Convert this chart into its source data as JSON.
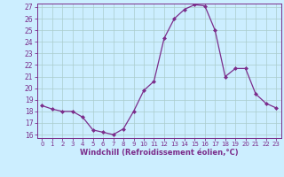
{
  "x": [
    0,
    1,
    2,
    3,
    4,
    5,
    6,
    7,
    8,
    9,
    10,
    11,
    12,
    13,
    14,
    15,
    16,
    17,
    18,
    19,
    20,
    21,
    22,
    23
  ],
  "y": [
    18.5,
    18.2,
    18.0,
    18.0,
    17.5,
    16.4,
    16.2,
    16.0,
    16.5,
    18.0,
    19.8,
    20.6,
    24.3,
    26.0,
    26.8,
    27.2,
    27.1,
    25.0,
    21.0,
    21.7,
    21.7,
    19.5,
    18.7,
    18.3
  ],
  "line_color": "#7B2D8B",
  "marker": "D",
  "marker_size": 2.0,
  "bg_color": "#cceeff",
  "grid_color": "#aacccc",
  "xlabel": "Windchill (Refroidissement éolien,°C)",
  "ylim": [
    16,
    27
  ],
  "xlim": [
    -0.5,
    23.5
  ],
  "yticks": [
    16,
    17,
    18,
    19,
    20,
    21,
    22,
    23,
    24,
    25,
    26,
    27
  ],
  "xticks": [
    0,
    1,
    2,
    3,
    4,
    5,
    6,
    7,
    8,
    9,
    10,
    11,
    12,
    13,
    14,
    15,
    16,
    17,
    18,
    19,
    20,
    21,
    22,
    23
  ],
  "xlabel_color": "#7B2D8B",
  "tick_color": "#7B2D8B",
  "spine_color": "#7B2D8B"
}
